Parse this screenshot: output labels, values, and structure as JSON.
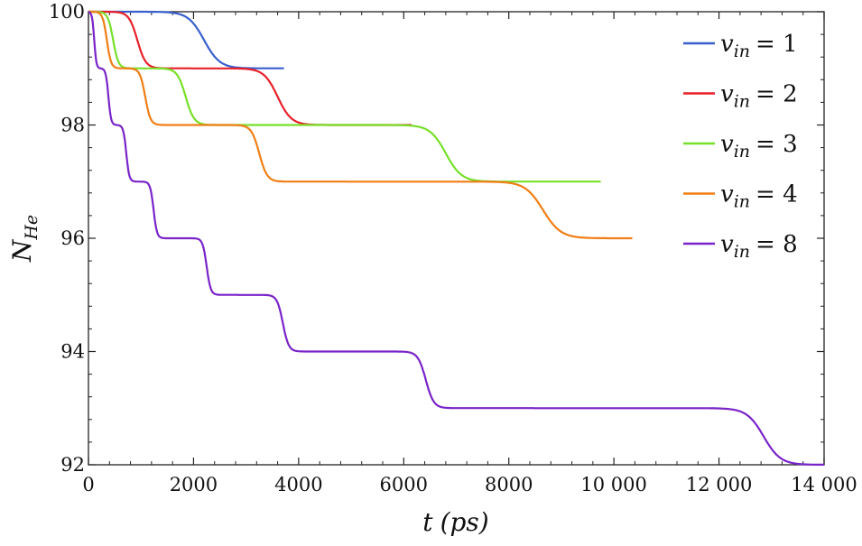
{
  "chart_data": {
    "type": "line",
    "xlabel": "t (ps)",
    "ylabel": "N_He",
    "xlim": [
      0,
      14000
    ],
    "ylim": [
      92,
      100
    ],
    "x_ticks": [
      0,
      2000,
      4000,
      6000,
      8000,
      10000,
      12000,
      14000
    ],
    "x_tick_labels": [
      "0",
      "2000",
      "4000",
      "6000",
      "8000",
      "10 000",
      "12 000",
      "14 000"
    ],
    "y_ticks": [
      92,
      94,
      96,
      98,
      100
    ],
    "y_tick_labels": [
      "92",
      "94",
      "96",
      "98",
      "100"
    ],
    "grid": false,
    "legend_position": "top-right",
    "series": [
      {
        "name": "v_in = 1",
        "color": "#3a5fcd",
        "x_end": 3720,
        "steps": [
          {
            "t": 2200,
            "w": 150
          }
        ],
        "start": 100
      },
      {
        "name": "v_in = 2",
        "color": "#e8202a",
        "x_end": 6150,
        "steps": [
          {
            "t": 930,
            "w": 80
          },
          {
            "t": 3600,
            "w": 130
          }
        ],
        "start": 100
      },
      {
        "name": "v_in = 3",
        "color": "#77e02a",
        "x_end": 9750,
        "steps": [
          {
            "t": 470,
            "w": 50
          },
          {
            "t": 1850,
            "w": 80
          },
          {
            "t": 6800,
            "w": 150
          }
        ],
        "start": 100
      },
      {
        "name": "v_in = 4",
        "color": "#f07e16",
        "x_end": 10350,
        "steps": [
          {
            "t": 350,
            "w": 40
          },
          {
            "t": 1080,
            "w": 50
          },
          {
            "t": 3250,
            "w": 75
          },
          {
            "t": 8650,
            "w": 170
          }
        ],
        "start": 100
      },
      {
        "name": "v_in = 8",
        "color": "#7a24c9",
        "x_end": 14000,
        "steps": [
          {
            "t": 110,
            "w": 20
          },
          {
            "t": 380,
            "w": 25
          },
          {
            "t": 720,
            "w": 28
          },
          {
            "t": 1240,
            "w": 32
          },
          {
            "t": 2250,
            "w": 38
          },
          {
            "t": 3700,
            "w": 55
          },
          {
            "t": 6420,
            "w": 75
          },
          {
            "t": 12850,
            "w": 160
          }
        ],
        "start": 100
      }
    ],
    "legend_entries": [
      {
        "var": "v",
        "sub": "in",
        "rhs": "= 1"
      },
      {
        "var": "v",
        "sub": "in",
        "rhs": "= 2"
      },
      {
        "var": "v",
        "sub": "in",
        "rhs": "= 3"
      },
      {
        "var": "v",
        "sub": "in",
        "rhs": "= 4"
      },
      {
        "var": "v",
        "sub": "in",
        "rhs": "= 8"
      }
    ],
    "axis_label_parts": {
      "x_var": "t",
      "x_unit": "(ps)",
      "y_var": "N",
      "y_sub": "He"
    }
  }
}
